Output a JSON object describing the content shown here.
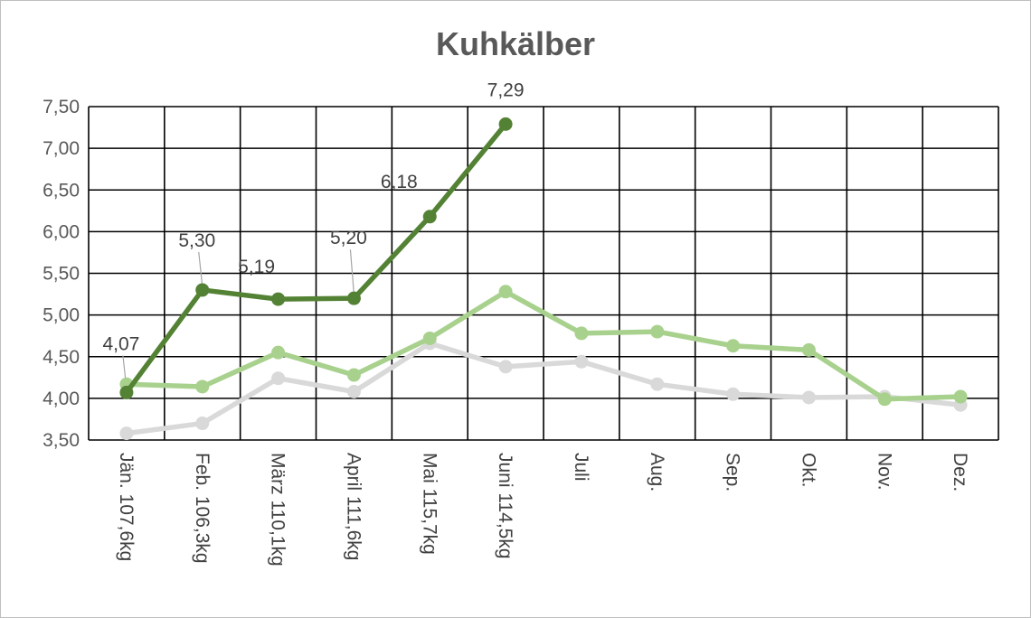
{
  "chart_data": {
    "type": "line",
    "title": "Kuhkälber",
    "xlabel": "",
    "ylabel": "",
    "ylim": [
      3.5,
      7.5
    ],
    "yticks": [
      "3,50",
      "4,00",
      "4,50",
      "5,00",
      "5,50",
      "6,00",
      "6,50",
      "7,00",
      "7,50"
    ],
    "grid": true,
    "legend": "none",
    "categories": [
      "Jän.  107,6kg",
      "Feb.  106,3kg",
      "März 110,1kg",
      "April  111,6kg",
      "Mai  115,7kg",
      "Juni  114,5kg",
      "Juli",
      "Aug.",
      "Sep.",
      "Okt.",
      "Nov.",
      "Dez."
    ],
    "series": [
      {
        "color": "#d9d9d9",
        "values": [
          3.58,
          3.7,
          4.24,
          4.08,
          4.66,
          4.38,
          4.44,
          4.17,
          4.05,
          4.01,
          4.02,
          3.92
        ]
      },
      {
        "color": "#a9d18e",
        "values": [
          4.17,
          4.14,
          4.55,
          4.28,
          4.72,
          5.28,
          4.78,
          4.8,
          4.63,
          4.58,
          3.99,
          4.02
        ]
      },
      {
        "color": "#548235",
        "values": [
          4.07,
          5.3,
          5.19,
          5.2,
          6.18,
          7.29,
          null,
          null,
          null,
          null,
          null,
          null
        ],
        "data_labels": [
          "4,07",
          "5,30",
          "5,19",
          "5,20",
          "6,18",
          "7,29"
        ]
      }
    ]
  }
}
